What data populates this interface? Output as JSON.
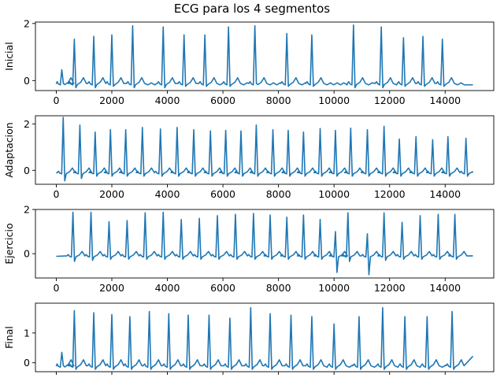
{
  "figure": {
    "title": "ECG para los 4 segmentos"
  },
  "chart_data": [
    {
      "type": "line",
      "title": "",
      "xlabel": "",
      "ylabel": "Inicial",
      "xlim": [
        -750,
        15750
      ],
      "ylim": [
        -0.35,
        2.05
      ],
      "xticks": [
        0,
        2000,
        4000,
        6000,
        8000,
        10000,
        12000,
        14000
      ],
      "yticks": [
        0,
        2
      ],
      "series": [
        {
          "baseline": -0.12,
          "beats": [
            {
              "x": 200,
              "peak": 0.38,
              "trough": -0.1
            },
            {
              "x": 650,
              "peak": 1.45,
              "trough": -0.25
            },
            {
              "x": 1350,
              "peak": 1.55,
              "trough": -0.25
            },
            {
              "x": 2000,
              "peak": 1.6,
              "trough": -0.2
            },
            {
              "x": 2750,
              "peak": 1.92,
              "trough": -0.25
            },
            {
              "x": 3850,
              "peak": 1.88,
              "trough": -0.25
            },
            {
              "x": 4600,
              "peak": 1.6,
              "trough": -0.2
            },
            {
              "x": 5350,
              "peak": 1.6,
              "trough": -0.2
            },
            {
              "x": 6200,
              "peak": 1.88,
              "trough": -0.2
            },
            {
              "x": 7150,
              "peak": 1.92,
              "trough": -0.1
            },
            {
              "x": 8300,
              "peak": 1.65,
              "trough": -0.2
            },
            {
              "x": 9200,
              "peak": 1.6,
              "trough": -0.2
            },
            {
              "x": 10700,
              "peak": 1.95,
              "trough": -0.25
            },
            {
              "x": 11700,
              "peak": 1.88,
              "trough": -0.25
            },
            {
              "x": 12500,
              "peak": 1.5,
              "trough": -0.2
            },
            {
              "x": 13200,
              "peak": 1.55,
              "trough": -0.2
            },
            {
              "x": 13900,
              "peak": 1.45,
              "trough": -0.2
            }
          ],
          "end": {
            "x": 15000,
            "y": -0.15
          }
        }
      ]
    },
    {
      "type": "line",
      "title": "",
      "xlabel": "",
      "ylabel": "Adaptacion",
      "xlim": [
        -750,
        15750
      ],
      "ylim": [
        -0.6,
        2.35
      ],
      "xticks": [
        0,
        2000,
        4000,
        6000,
        8000,
        10000,
        12000,
        14000
      ],
      "yticks": [
        0,
        2
      ],
      "series": [
        {
          "baseline": -0.12,
          "beats": [
            {
              "x": 250,
              "peak": 2.28,
              "trough": -0.45
            },
            {
              "x": 850,
              "peak": 1.95,
              "trough": -0.35
            },
            {
              "x": 1400,
              "peak": 1.65,
              "trough": -0.25
            },
            {
              "x": 1950,
              "peak": 1.75,
              "trough": -0.25
            },
            {
              "x": 2500,
              "peak": 1.75,
              "trough": -0.25
            },
            {
              "x": 3100,
              "peak": 1.85,
              "trough": -0.25
            },
            {
              "x": 3750,
              "peak": 1.78,
              "trough": -0.25
            },
            {
              "x": 4350,
              "peak": 1.85,
              "trough": -0.25
            },
            {
              "x": 4950,
              "peak": 1.75,
              "trough": -0.25
            },
            {
              "x": 5550,
              "peak": 1.7,
              "trough": -0.25
            },
            {
              "x": 6100,
              "peak": 1.72,
              "trough": -0.25
            },
            {
              "x": 6650,
              "peak": 1.7,
              "trough": -0.25
            },
            {
              "x": 7200,
              "peak": 1.95,
              "trough": -0.25
            },
            {
              "x": 7800,
              "peak": 1.75,
              "trough": -0.25
            },
            {
              "x": 8350,
              "peak": 1.72,
              "trough": -0.25
            },
            {
              "x": 8900,
              "peak": 1.65,
              "trough": -0.25
            },
            {
              "x": 9500,
              "peak": 1.8,
              "trough": -0.25
            },
            {
              "x": 10050,
              "peak": 1.72,
              "trough": -0.25
            },
            {
              "x": 10600,
              "peak": 1.82,
              "trough": -0.25
            },
            {
              "x": 11200,
              "peak": 1.75,
              "trough": -0.25
            },
            {
              "x": 11800,
              "peak": 1.9,
              "trough": -0.25
            },
            {
              "x": 12350,
              "peak": 1.35,
              "trough": -0.25
            },
            {
              "x": 12950,
              "peak": 1.45,
              "trough": -0.25
            },
            {
              "x": 13550,
              "peak": 1.32,
              "trough": -0.25
            },
            {
              "x": 14100,
              "peak": 1.45,
              "trough": -0.25
            },
            {
              "x": 14750,
              "peak": 1.38,
              "trough": -0.25
            }
          ],
          "end": {
            "x": 15000,
            "y": -0.1
          }
        }
      ]
    },
    {
      "type": "line",
      "title": "",
      "xlabel": "",
      "ylabel": "Ejercicio",
      "xlim": [
        -750,
        15750
      ],
      "ylim": [
        -1.1,
        2.0
      ],
      "xticks": [
        0,
        2000,
        4000,
        6000,
        8000,
        10000,
        12000,
        14000
      ],
      "yticks": [
        0,
        2
      ],
      "series": [
        {
          "baseline": -0.12,
          "beats": [
            {
              "x": 600,
              "peak": 1.88,
              "trough": -0.35
            },
            {
              "x": 1250,
              "peak": 1.88,
              "trough": -0.3
            },
            {
              "x": 1900,
              "peak": 1.45,
              "trough": -0.25
            },
            {
              "x": 2550,
              "peak": 1.5,
              "trough": -0.25
            },
            {
              "x": 3200,
              "peak": 1.85,
              "trough": -0.25
            },
            {
              "x": 3850,
              "peak": 1.88,
              "trough": -0.25
            },
            {
              "x": 4500,
              "peak": 1.55,
              "trough": -0.25
            },
            {
              "x": 5150,
              "peak": 1.6,
              "trough": -0.25
            },
            {
              "x": 5800,
              "peak": 1.72,
              "trough": -0.25
            },
            {
              "x": 6450,
              "peak": 1.78,
              "trough": -0.25
            },
            {
              "x": 7100,
              "peak": 1.82,
              "trough": -0.25
            },
            {
              "x": 7700,
              "peak": 1.75,
              "trough": -0.25
            },
            {
              "x": 8300,
              "peak": 1.65,
              "trough": -0.25
            },
            {
              "x": 8900,
              "peak": 1.75,
              "trough": -0.25
            },
            {
              "x": 9500,
              "peak": 1.55,
              "trough": -0.25
            },
            {
              "x": 10050,
              "peak": 1.0,
              "trough": -0.85
            },
            {
              "x": 10500,
              "peak": 1.85,
              "trough": -0.35
            },
            {
              "x": 11200,
              "peak": 0.9,
              "trough": -0.95
            },
            {
              "x": 11800,
              "peak": 1.85,
              "trough": -0.3
            },
            {
              "x": 12450,
              "peak": 1.42,
              "trough": -0.25
            },
            {
              "x": 13100,
              "peak": 1.72,
              "trough": -0.25
            },
            {
              "x": 13750,
              "peak": 1.78,
              "trough": -0.25
            },
            {
              "x": 14350,
              "peak": 1.78,
              "trough": -0.25
            }
          ],
          "end": {
            "x": 15000,
            "y": -0.1
          }
        }
      ]
    },
    {
      "type": "line",
      "title": "",
      "xlabel": "",
      "ylabel": "Final",
      "xlim": [
        -750,
        15750
      ],
      "ylim": [
        -0.3,
        2.0
      ],
      "xticks": [
        0,
        2000,
        4000,
        6000,
        8000,
        10000,
        12000,
        14000
      ],
      "yticks": [
        0,
        1
      ],
      "series": [
        {
          "baseline": -0.12,
          "beats": [
            {
              "x": 200,
              "peak": 0.35,
              "trough": -0.1
            },
            {
              "x": 650,
              "peak": 1.75,
              "trough": -0.22
            },
            {
              "x": 1350,
              "peak": 1.68,
              "trough": -0.22
            },
            {
              "x": 2000,
              "peak": 1.62,
              "trough": -0.22
            },
            {
              "x": 2650,
              "peak": 1.55,
              "trough": -0.22
            },
            {
              "x": 3350,
              "peak": 1.72,
              "trough": -0.22
            },
            {
              "x": 4050,
              "peak": 1.65,
              "trough": -0.22
            },
            {
              "x": 4750,
              "peak": 1.6,
              "trough": -0.22
            },
            {
              "x": 5500,
              "peak": 1.6,
              "trough": -0.22
            },
            {
              "x": 6250,
              "peak": 1.5,
              "trough": -0.22
            },
            {
              "x": 7000,
              "peak": 1.85,
              "trough": -0.22
            },
            {
              "x": 7700,
              "peak": 1.65,
              "trough": -0.22
            },
            {
              "x": 8450,
              "peak": 1.6,
              "trough": -0.22
            },
            {
              "x": 9200,
              "peak": 1.55,
              "trough": -0.22
            },
            {
              "x": 10000,
              "peak": 1.3,
              "trough": -0.22
            },
            {
              "x": 10900,
              "peak": 1.55,
              "trough": -0.22
            },
            {
              "x": 11750,
              "peak": 1.85,
              "trough": -0.22
            },
            {
              "x": 12550,
              "peak": 1.55,
              "trough": -0.22
            },
            {
              "x": 13350,
              "peak": 1.55,
              "trough": -0.22
            },
            {
              "x": 14250,
              "peak": 1.72,
              "trough": -0.22
            }
          ],
          "end": {
            "x": 15000,
            "y": 0.22
          }
        }
      ]
    }
  ],
  "colors": {
    "series": "#1f77b4"
  }
}
